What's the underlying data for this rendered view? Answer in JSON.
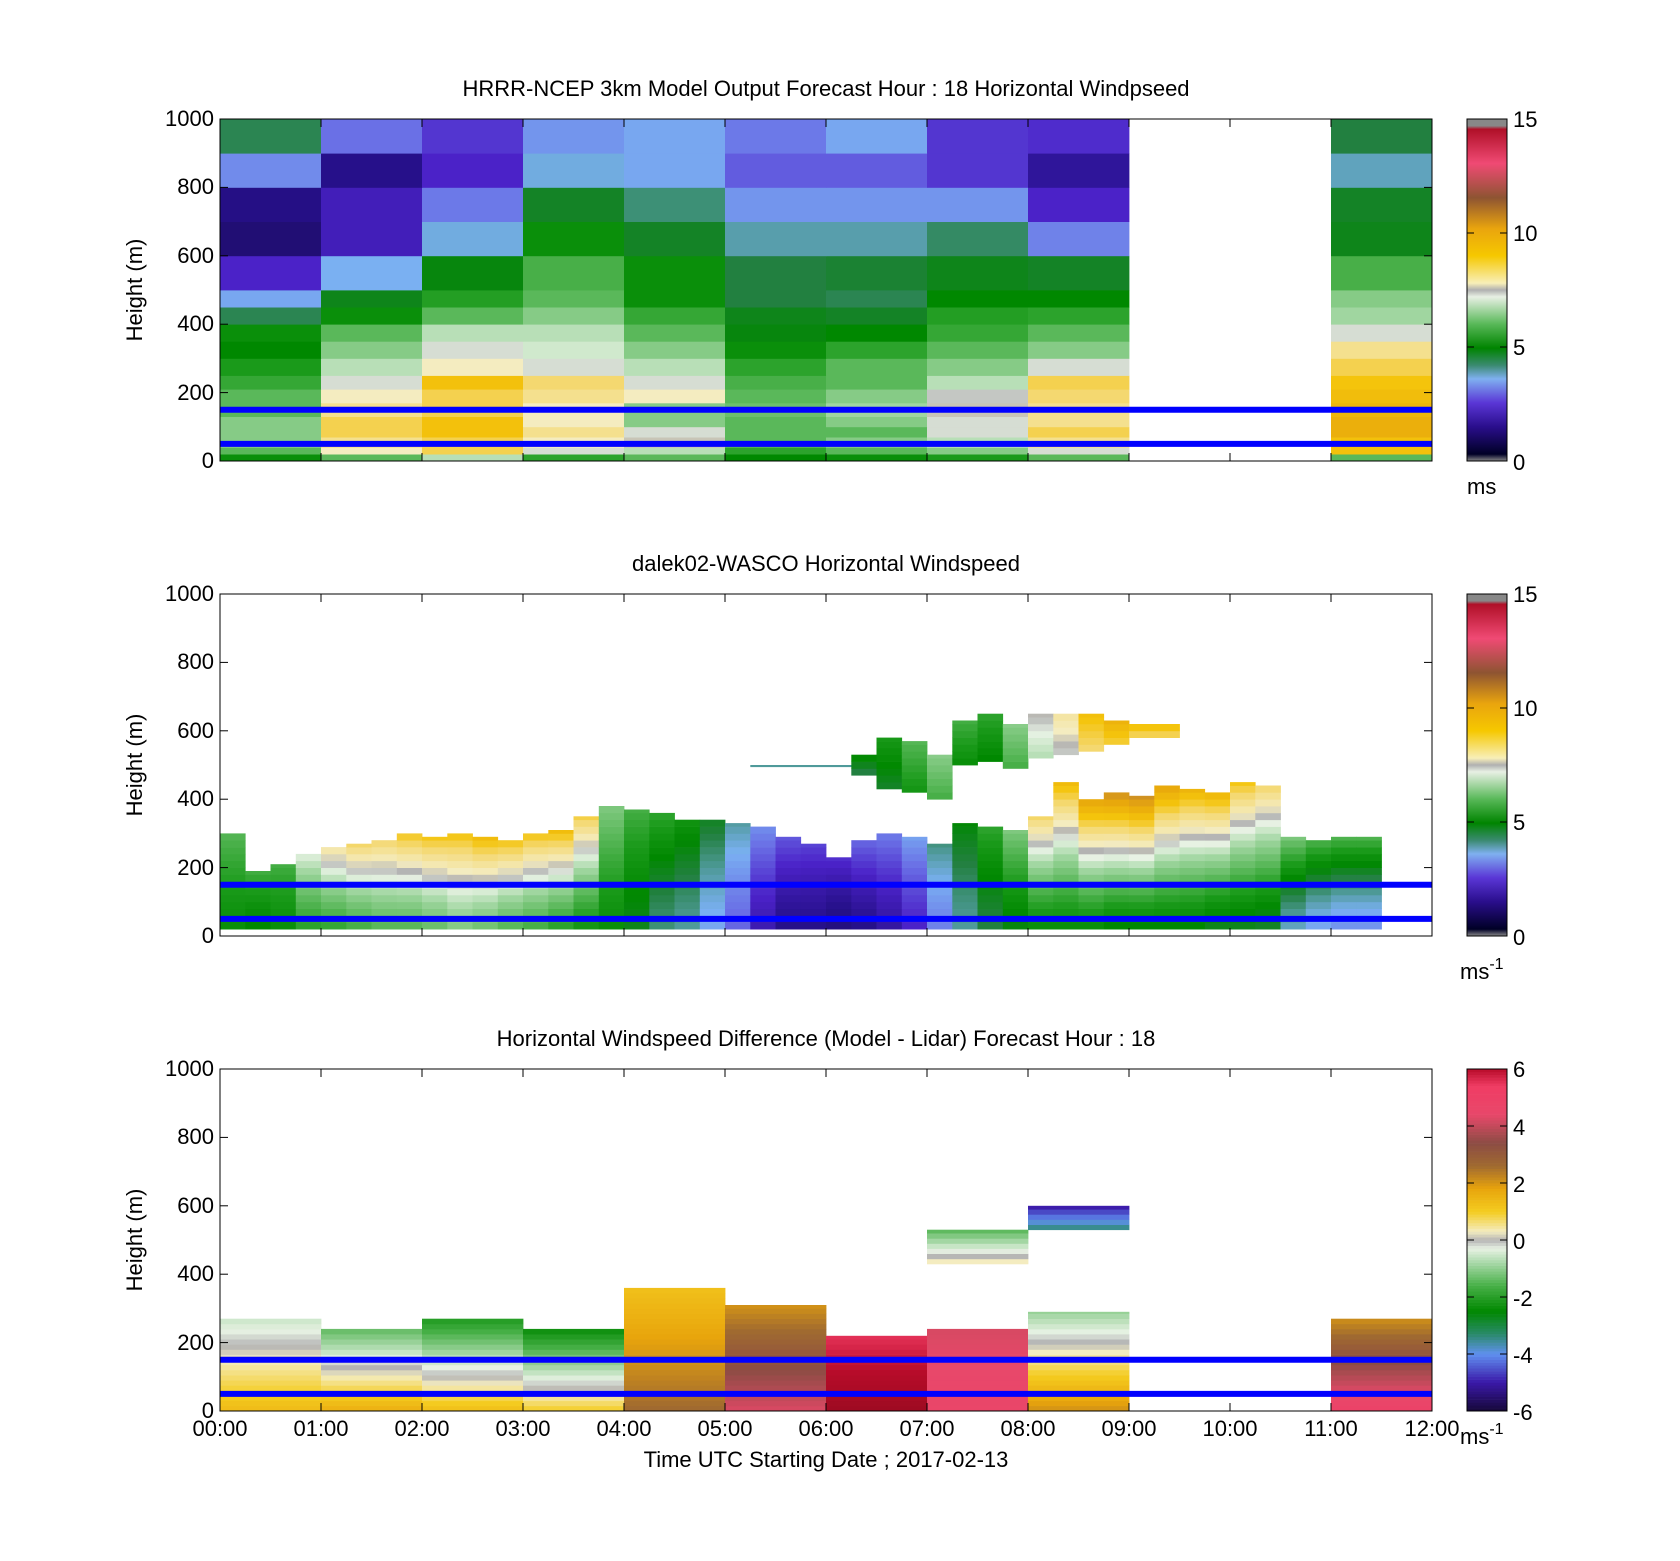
{
  "figure": {
    "xlabel": "Time UTC  Starting Date ; 2017-02-13",
    "x_ticks": [
      "00:00",
      "01:00",
      "02:00",
      "03:00",
      "04:00",
      "05:00",
      "06:00",
      "07:00",
      "08:00",
      "09:00",
      "10:00",
      "11:00",
      "12:00"
    ],
    "colors": {
      "reference_lines": "#0000ff",
      "missing": "#ffffff"
    }
  },
  "chart_data": [
    {
      "type": "heatmap",
      "title": "HRRR-NCEP 3km Model Output   Forecast Hour : 18 Horizontal Windpseed",
      "ylabel": "Height (m)",
      "xlim_hours": [
        0,
        12
      ],
      "ylim": [
        0,
        1000
      ],
      "y_ticks": [
        0,
        200,
        400,
        600,
        800,
        1000
      ],
      "reference_lines_m": [
        50,
        150
      ],
      "colorbar": {
        "unit": "ms",
        "unit_superscript": "",
        "range": [
          0,
          15
        ],
        "ticks": [
          0,
          5,
          10,
          15
        ]
      },
      "time_bins_hours": [
        0,
        1,
        2,
        3,
        4,
        5,
        6,
        7,
        8,
        11
      ],
      "height_bins_m": [
        [
          0,
          20
        ],
        [
          20,
          40
        ],
        [
          40,
          70
        ],
        [
          70,
          100
        ],
        [
          100,
          130
        ],
        [
          130,
          170
        ],
        [
          170,
          210
        ],
        [
          210,
          250
        ],
        [
          250,
          300
        ],
        [
          300,
          350
        ],
        [
          350,
          400
        ],
        [
          400,
          450
        ],
        [
          450,
          500
        ],
        [
          500,
          600
        ],
        [
          600,
          700
        ],
        [
          700,
          800
        ],
        [
          800,
          900
        ],
        [
          900,
          1000
        ]
      ],
      "values_ms": [
        [
          5.0,
          6.0,
          7.0,
          5.5,
          6.0,
          4.8,
          5.0,
          5.3,
          6.0,
          6.0
        ],
        [
          6.0,
          8.0,
          9.0,
          7.5,
          7.0,
          5.5,
          6.0,
          6.5,
          7.5,
          9.5
        ],
        [
          6.5,
          8.5,
          9.0,
          8.0,
          7.8,
          6.0,
          6.5,
          7.0,
          8.5,
          9.5
        ],
        [
          6.5,
          9.0,
          9.5,
          8.5,
          7.5,
          6.0,
          6.0,
          7.5,
          9.0,
          10.0
        ],
        [
          6.5,
          9.0,
          9.5,
          8.0,
          6.5,
          6.0,
          6.5,
          7.5,
          8.5,
          10.0
        ],
        [
          6.0,
          8.5,
          9.0,
          8.0,
          6.5,
          6.2,
          6.8,
          7.8,
          8.5,
          9.8
        ],
        [
          6.0,
          8.0,
          9.0,
          8.5,
          8.0,
          6.0,
          6.5,
          7.6,
          8.8,
          9.6
        ],
        [
          5.6,
          7.5,
          9.5,
          8.8,
          7.5,
          5.8,
          6.0,
          7.0,
          9.0,
          9.4
        ],
        [
          5.3,
          7.0,
          8.0,
          7.5,
          7.0,
          5.5,
          6.0,
          6.5,
          7.5,
          9.0
        ],
        [
          4.8,
          6.5,
          7.5,
          7.2,
          6.5,
          5.0,
          5.5,
          6.0,
          6.5,
          8.5
        ],
        [
          5.0,
          6.0,
          7.0,
          7.0,
          6.0,
          4.7,
          4.8,
          5.6,
          6.0,
          7.5
        ],
        [
          4.2,
          5.0,
          6.0,
          6.5,
          5.6,
          4.6,
          4.5,
          5.4,
          5.5,
          6.8
        ],
        [
          3.2,
          4.6,
          5.4,
          6.0,
          5.0,
          4.3,
          4.2,
          4.8,
          4.8,
          6.5
        ],
        [
          1.8,
          3.3,
          4.7,
          5.8,
          5.0,
          4.3,
          4.4,
          4.6,
          4.5,
          5.8
        ],
        [
          0.6,
          1.6,
          3.4,
          5.0,
          4.5,
          3.7,
          3.7,
          4.1,
          2.8,
          4.6
        ],
        [
          0.9,
          1.6,
          2.7,
          4.5,
          4.0,
          3.0,
          3.0,
          3.0,
          1.8,
          4.5
        ],
        [
          2.9,
          1.0,
          1.8,
          3.4,
          3.2,
          2.4,
          2.4,
          2.0,
          1.2,
          3.6
        ],
        [
          4.2,
          2.6,
          2.0,
          3.0,
          3.2,
          2.7,
          3.2,
          2.0,
          1.9,
          4.3
        ]
      ]
    },
    {
      "type": "heatmap",
      "title": "dalek02-WASCO  Horizontal Windspeed",
      "ylabel": "Height (m)",
      "xlim_hours": [
        0,
        12
      ],
      "ylim": [
        0,
        1000
      ],
      "y_ticks": [
        0,
        200,
        400,
        600,
        800,
        1000
      ],
      "reference_lines_m": [
        50,
        150
      ],
      "colorbar": {
        "unit": "ms",
        "unit_superscript": "-1",
        "range": [
          0,
          15
        ],
        "ticks": [
          0,
          5,
          10,
          15
        ]
      },
      "column_width_hours": 0.25,
      "columns": [
        {
          "t": 0.0,
          "top": 300,
          "low": 5.0,
          "up": 6.0
        },
        {
          "t": 0.25,
          "top": 190,
          "low": 4.8,
          "up": 5.8
        },
        {
          "t": 0.5,
          "top": 210,
          "low": 5.0,
          "up": 5.8
        },
        {
          "t": 0.75,
          "top": 240,
          "low": 5.5,
          "up": 7.5
        },
        {
          "t": 1.0,
          "top": 260,
          "low": 5.6,
          "up": 8.5
        },
        {
          "t": 1.25,
          "top": 270,
          "low": 5.8,
          "up": 9.0
        },
        {
          "t": 1.5,
          "top": 280,
          "low": 6.0,
          "up": 9.0
        },
        {
          "t": 1.75,
          "top": 300,
          "low": 6.0,
          "up": 9.5
        },
        {
          "t": 2.0,
          "top": 290,
          "low": 6.2,
          "up": 9.5
        },
        {
          "t": 2.25,
          "top": 300,
          "low": 6.5,
          "up": 9.6
        },
        {
          "t": 2.5,
          "top": 290,
          "low": 6.3,
          "up": 9.8
        },
        {
          "t": 2.75,
          "top": 280,
          "low": 6.0,
          "up": 9.6
        },
        {
          "t": 3.0,
          "top": 300,
          "low": 5.8,
          "up": 9.6
        },
        {
          "t": 3.25,
          "top": 310,
          "low": 5.5,
          "up": 9.8
        },
        {
          "t": 3.5,
          "top": 350,
          "low": 5.2,
          "up": 9.2
        },
        {
          "t": 3.75,
          "top": 380,
          "low": 5.0,
          "up": 6.5
        },
        {
          "t": 4.0,
          "top": 370,
          "low": 4.6,
          "up": 5.8
        },
        {
          "t": 4.25,
          "top": 360,
          "low": 4.0,
          "up": 5.6
        },
        {
          "t": 4.5,
          "top": 340,
          "low": 3.8,
          "up": 5.2
        },
        {
          "t": 4.75,
          "top": 340,
          "low": 3.2,
          "up": 4.6
        },
        {
          "t": 5.0,
          "top": 330,
          "low": 2.5,
          "up": 3.8
        },
        {
          "t": 5.25,
          "top": 320,
          "low": 1.5,
          "up": 3.0
        },
        {
          "t": 5.5,
          "top": 290,
          "low": 1.0,
          "up": 2.4
        },
        {
          "t": 5.75,
          "top": 270,
          "low": 1.0,
          "up": 2.2
        },
        {
          "t": 6.0,
          "top": 230,
          "low": 0.8,
          "up": 2.0
        },
        {
          "t": 6.25,
          "top": 280,
          "low": 1.0,
          "up": 2.6
        },
        {
          "t": 6.5,
          "top": 300,
          "low": 1.3,
          "up": 2.8
        },
        {
          "t": 6.75,
          "top": 290,
          "low": 1.8,
          "up": 3.2
        },
        {
          "t": 7.0,
          "top": 270,
          "low": 2.8,
          "up": 4.0
        },
        {
          "t": 7.25,
          "top": 330,
          "low": 3.8,
          "up": 4.8
        },
        {
          "t": 7.5,
          "top": 320,
          "low": 4.3,
          "up": 5.6
        },
        {
          "t": 7.75,
          "top": 310,
          "low": 4.7,
          "up": 6.5
        },
        {
          "t": 8.0,
          "top": 350,
          "low": 5.0,
          "up": 9.0
        },
        {
          "t": 8.25,
          "top": 450,
          "low": 5.0,
          "up": 9.8
        },
        {
          "t": 8.5,
          "top": 400,
          "low": 5.0,
          "up": 10.5
        },
        {
          "t": 8.75,
          "top": 420,
          "low": 4.8,
          "up": 11.0
        },
        {
          "t": 9.0,
          "top": 410,
          "low": 4.8,
          "up": 11.0
        },
        {
          "t": 9.25,
          "top": 440,
          "low": 4.8,
          "up": 10.5
        },
        {
          "t": 9.5,
          "top": 430,
          "low": 4.8,
          "up": 10.0
        },
        {
          "t": 9.75,
          "top": 420,
          "low": 4.6,
          "up": 10.0
        },
        {
          "t": 10.0,
          "top": 450,
          "low": 4.6,
          "up": 9.5
        },
        {
          "t": 10.25,
          "top": 440,
          "low": 4.5,
          "up": 9.0
        },
        {
          "t": 10.5,
          "top": 290,
          "low": 3.6,
          "up": 6.5
        },
        {
          "t": 10.75,
          "top": 280,
          "low": 3.2,
          "up": 6.0
        },
        {
          "t": 11.0,
          "top": 290,
          "low": 3.0,
          "up": 6.0
        },
        {
          "t": 11.25,
          "top": 290,
          "low": 3.0,
          "up": 6.0
        }
      ],
      "aloft_patches": [
        {
          "t0": 5.25,
          "t1": 6.25,
          "y0": 495,
          "y1": 500,
          "v": 3.8
        },
        {
          "t0": 6.25,
          "t1": 6.5,
          "y0": 470,
          "y1": 530,
          "v": 4.3
        },
        {
          "t0": 6.5,
          "t1": 6.75,
          "y0": 430,
          "y1": 580,
          "v": 4.5
        },
        {
          "t0": 6.75,
          "t1": 7.0,
          "y0": 420,
          "y1": 570,
          "v": 5.2
        },
        {
          "t0": 7.0,
          "top": 0,
          "t1": 7.25,
          "y0": 400,
          "y1": 530,
          "v": 5.8
        },
        {
          "t0": 7.25,
          "t1": 7.5,
          "y0": 500,
          "y1": 630,
          "v": 5.0
        },
        {
          "t0": 7.5,
          "t1": 7.75,
          "y0": 510,
          "y1": 650,
          "v": 4.8
        },
        {
          "t0": 7.75,
          "t1": 8.0,
          "y0": 490,
          "y1": 620,
          "v": 5.8
        },
        {
          "t0": 8.0,
          "t1": 8.25,
          "y0": 520,
          "y1": 650,
          "v": 7.0
        },
        {
          "t0": 8.25,
          "t1": 8.5,
          "y0": 530,
          "y1": 650,
          "v": 7.6
        },
        {
          "t0": 8.5,
          "t1": 8.75,
          "y0": 540,
          "y1": 650,
          "v": 8.8
        },
        {
          "t0": 8.75,
          "t1": 9.0,
          "y0": 560,
          "y1": 630,
          "v": 9.2
        },
        {
          "t0": 9.0,
          "t1": 9.5,
          "y0": 580,
          "y1": 620,
          "v": 9.0
        }
      ]
    },
    {
      "type": "heatmap",
      "title": "Horizontal Windspeed Difference (Model - Lidar) Forecast Hour : 18",
      "ylabel": "Height (m)",
      "xlim_hours": [
        0,
        12
      ],
      "ylim": [
        0,
        1000
      ],
      "y_ticks": [
        0,
        200,
        400,
        600,
        800,
        1000
      ],
      "reference_lines_m": [
        50,
        150
      ],
      "colorbar": {
        "unit": "ms",
        "unit_superscript": "-1",
        "range": [
          -6,
          6
        ],
        "ticks": [
          -6,
          -4,
          -2,
          0,
          2,
          4,
          6
        ]
      },
      "blocks": [
        {
          "t0": 0,
          "t1": 1,
          "y0": 0,
          "y1": 270,
          "low": 1.3,
          "up": -0.6
        },
        {
          "t0": 1,
          "t1": 2,
          "y0": 0,
          "y1": 240,
          "low": 1.5,
          "up": -1.5
        },
        {
          "t0": 2,
          "t1": 3,
          "y0": 0,
          "y1": 270,
          "low": 1.2,
          "up": -2.2
        },
        {
          "t0": 3,
          "t1": 4,
          "y0": 0,
          "y1": 240,
          "low": 0.9,
          "up": -2.5
        },
        {
          "t0": 4,
          "t1": 5,
          "y0": 0,
          "y1": 360,
          "low": 2.6,
          "up": 1.2
        },
        {
          "t0": 5,
          "t1": 6,
          "y0": 0,
          "y1": 310,
          "low": 4.2,
          "up": 2.0
        },
        {
          "t0": 6,
          "t1": 7,
          "y0": 0,
          "y1": 220,
          "low": 6.5,
          "up": 5.5
        },
        {
          "t0": 7,
          "t1": 8,
          "y0": 0,
          "y1": 240,
          "low": 4.6,
          "up": 4.2
        },
        {
          "t0": 8,
          "t1": 9,
          "y0": 0,
          "y1": 290,
          "low": 2.0,
          "up": -1.0
        },
        {
          "t0": 11,
          "t1": 12,
          "y0": 0,
          "y1": 270,
          "low": 4.8,
          "up": 2.0
        },
        {
          "t0": 7,
          "t1": 8,
          "y0": 430,
          "y1": 530,
          "low": 0.3,
          "up": -1.6
        },
        {
          "t0": 8,
          "t1": 9,
          "y0": 530,
          "y1": 600,
          "low": -3.5,
          "up": -5.2
        }
      ]
    }
  ]
}
